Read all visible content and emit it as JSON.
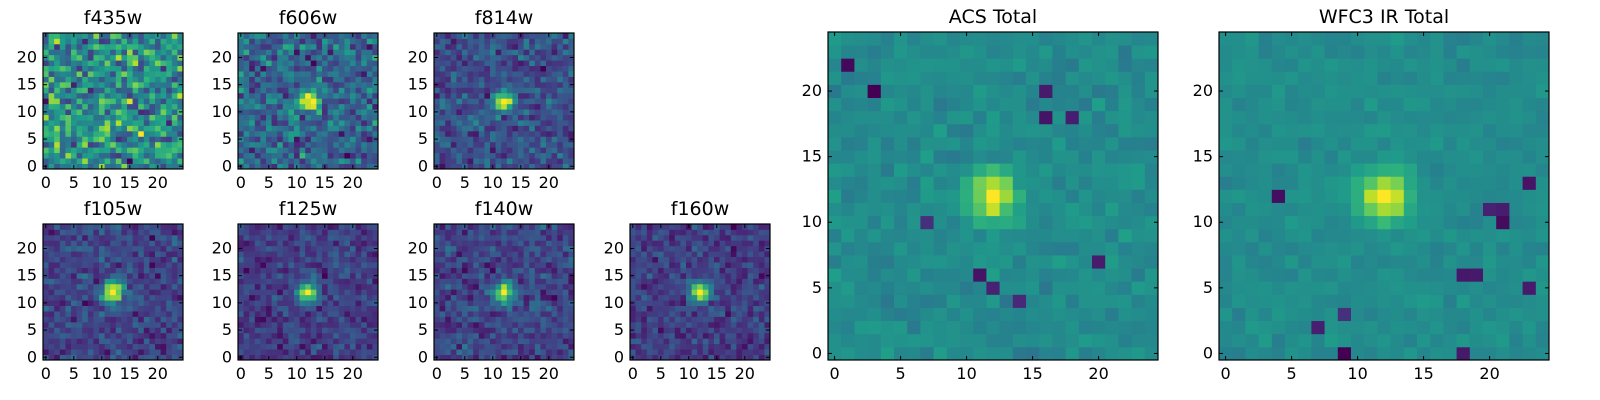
{
  "chart_data": {
    "type": "heatmap",
    "colormap": "viridis",
    "cutout_pixels": 25,
    "panels": [
      {
        "title": "f435w",
        "source_strength": 0.05,
        "noise": 0.55,
        "source_center": [
          12,
          12
        ],
        "seed": 11,
        "dark_pixels": [],
        "xticks": [
          0,
          5,
          10,
          15,
          20
        ],
        "yticks": [
          0,
          5,
          10,
          15,
          20
        ]
      },
      {
        "title": "f606w",
        "source_strength": 0.6,
        "noise": 0.35,
        "source_center": [
          12,
          12
        ],
        "seed": 23,
        "dark_pixels": [],
        "xticks": [
          0,
          5,
          10,
          15,
          20
        ],
        "yticks": [
          0,
          5,
          10,
          15,
          20
        ]
      },
      {
        "title": "f814w",
        "source_strength": 0.75,
        "noise": 0.32,
        "source_center": [
          12,
          12
        ],
        "seed": 37,
        "dark_pixels": [],
        "xticks": [
          0,
          5,
          10,
          15,
          20
        ],
        "yticks": [
          0,
          5,
          10,
          15,
          20
        ]
      },
      {
        "title": "f105w",
        "source_strength": 0.9,
        "noise": 0.22,
        "source_center": [
          12,
          12
        ],
        "seed": 41,
        "dark_pixels": [],
        "xticks": [
          0,
          5,
          10,
          15,
          20
        ],
        "yticks": [
          0,
          5,
          10,
          15,
          20
        ]
      },
      {
        "title": "f125w",
        "source_strength": 0.9,
        "noise": 0.24,
        "source_center": [
          12,
          12
        ],
        "seed": 53,
        "dark_pixels": [],
        "xticks": [
          0,
          5,
          10,
          15,
          20
        ],
        "yticks": [
          0,
          5,
          10,
          15,
          20
        ]
      },
      {
        "title": "f140w",
        "source_strength": 0.85,
        "noise": 0.25,
        "source_center": [
          12,
          12
        ],
        "seed": 67,
        "dark_pixels": [],
        "xticks": [
          0,
          5,
          10,
          15,
          20
        ],
        "yticks": [
          0,
          5,
          10,
          15,
          20
        ]
      },
      {
        "title": "f160w",
        "source_strength": 0.9,
        "noise": 0.24,
        "source_center": [
          12,
          12
        ],
        "seed": 79,
        "dark_pixels": [],
        "xticks": [
          0,
          5,
          10,
          15,
          20
        ],
        "yticks": [
          0,
          5,
          10,
          15,
          20
        ]
      },
      {
        "title": "ACS Total",
        "source_strength": 0.9,
        "noise": 0.2,
        "source_center": [
          12,
          12
        ],
        "seed": 83,
        "dark_pixels": [
          [
            1,
            22
          ],
          [
            3,
            20
          ],
          [
            7,
            10
          ],
          [
            11,
            6
          ],
          [
            16,
            20
          ],
          [
            16,
            18
          ],
          [
            18,
            18
          ],
          [
            12,
            5
          ],
          [
            14,
            4
          ],
          [
            20,
            7
          ]
        ],
        "xticks": [
          0,
          5,
          10,
          15,
          20
        ],
        "yticks": [
          0,
          5,
          10,
          15,
          20
        ]
      },
      {
        "title": "WFC3 IR Total",
        "source_strength": 1.0,
        "noise": 0.14,
        "source_center": [
          12,
          12
        ],
        "seed": 97,
        "dark_pixels": [
          [
            19,
            6
          ],
          [
            18,
            6
          ],
          [
            20,
            11
          ],
          [
            21,
            11
          ],
          [
            21,
            10
          ],
          [
            4,
            12
          ],
          [
            7,
            2
          ],
          [
            9,
            0
          ],
          [
            9,
            3
          ],
          [
            18,
            0
          ],
          [
            23,
            5
          ],
          [
            23,
            13
          ]
        ],
        "xticks": [
          0,
          5,
          10,
          15,
          20
        ],
        "yticks": [
          0,
          5,
          10,
          15,
          20
        ]
      }
    ]
  }
}
